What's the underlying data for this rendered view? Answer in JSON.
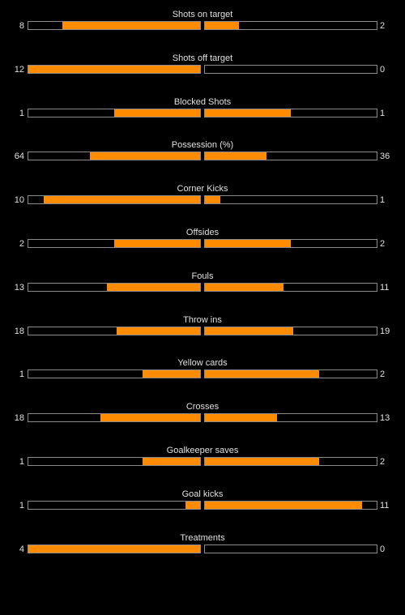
{
  "colors": {
    "background": "#000000",
    "bar_fill": "#ff8c00",
    "bar_border": "#8a8a8a",
    "text": "#e0e0e0"
  },
  "stats": [
    {
      "label": "Shots on target",
      "home": "8",
      "away": "2",
      "home_share": 0.8,
      "away_share": 0.2
    },
    {
      "label": "Shots off target",
      "home": "12",
      "away": "0",
      "home_share": 1.0,
      "away_share": 0.0
    },
    {
      "label": "Blocked Shots",
      "home": "1",
      "away": "1",
      "home_share": 0.5,
      "away_share": 0.5
    },
    {
      "label": "Possession (%)",
      "home": "64",
      "away": "36",
      "home_share": 0.64,
      "away_share": 0.36
    },
    {
      "label": "Corner Kicks",
      "home": "10",
      "away": "1",
      "home_share": 0.909,
      "away_share": 0.091
    },
    {
      "label": "Offsides",
      "home": "2",
      "away": "2",
      "home_share": 0.5,
      "away_share": 0.5
    },
    {
      "label": "Fouls",
      "home": "13",
      "away": "11",
      "home_share": 0.542,
      "away_share": 0.458
    },
    {
      "label": "Throw ins",
      "home": "18",
      "away": "19",
      "home_share": 0.486,
      "away_share": 0.514
    },
    {
      "label": "Yellow cards",
      "home": "1",
      "away": "2",
      "home_share": 0.333,
      "away_share": 0.667
    },
    {
      "label": "Crosses",
      "home": "18",
      "away": "13",
      "home_share": 0.581,
      "away_share": 0.419
    },
    {
      "label": "Goalkeeper saves",
      "home": "1",
      "away": "2",
      "home_share": 0.333,
      "away_share": 0.667
    },
    {
      "label": "Goal kicks",
      "home": "1",
      "away": "11",
      "home_share": 0.083,
      "away_share": 0.917
    },
    {
      "label": "Treatments",
      "home": "4",
      "away": "0",
      "home_share": 1.0,
      "away_share": 0.0
    }
  ]
}
